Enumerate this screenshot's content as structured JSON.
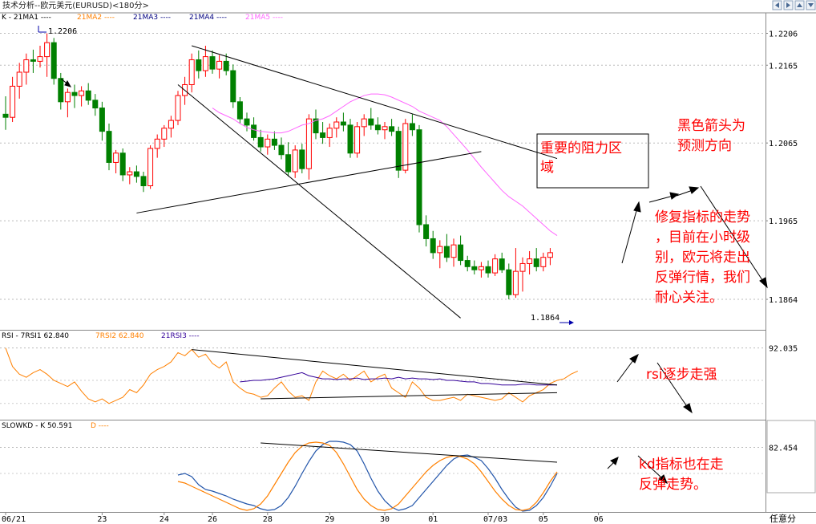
{
  "window": {
    "title": "技术分析--欧元美元(EURUSD)<180分>",
    "nav_buttons": [
      "prev-arrow-icon",
      "next-arrow-icon",
      "up-arrow-icon",
      "down-arrow-icon"
    ]
  },
  "colors": {
    "up": "#ff0000",
    "down": "#008000",
    "ma5": "#ff66ff",
    "rsi7": "#ff8000",
    "rsi21": "#330099",
    "kd_k": "#2255aa",
    "kd_d": "#ff8000",
    "annotation": "#ff0000"
  },
  "chart_data": [
    {
      "type": "candlestick",
      "panel": "price",
      "legend": [
        "K - 21MA1 ----",
        "21MA2 ----",
        "21MA3 ----",
        "21MA4 ----",
        "21MA5 ----"
      ],
      "ylim": [
        1.183,
        1.2222
      ],
      "y_ticks": [
        "1.2206",
        "1.2165",
        "1.2065",
        "1.1965",
        "1.1864"
      ],
      "y_tick_values": [
        1.2206,
        1.2165,
        1.2065,
        1.1965,
        1.1864
      ],
      "high_label": "1.2206",
      "low_label": "1.1864",
      "candles": [
        {
          "o": 1.2102,
          "h": 1.2125,
          "l": 1.2082,
          "c": 1.2098
        },
        {
          "o": 1.2098,
          "h": 1.215,
          "l": 1.2092,
          "c": 1.2138
        },
        {
          "o": 1.2138,
          "h": 1.2168,
          "l": 1.2122,
          "c": 1.2156
        },
        {
          "o": 1.2156,
          "h": 1.218,
          "l": 1.214,
          "c": 1.2172
        },
        {
          "o": 1.2172,
          "h": 1.2185,
          "l": 1.2155,
          "c": 1.217
        },
        {
          "o": 1.217,
          "h": 1.219,
          "l": 1.2162,
          "c": 1.2176
        },
        {
          "o": 1.2176,
          "h": 1.2206,
          "l": 1.215,
          "c": 1.2194
        },
        {
          "o": 1.2194,
          "h": 1.22,
          "l": 1.214,
          "c": 1.2148
        },
        {
          "o": 1.2148,
          "h": 1.2155,
          "l": 1.2108,
          "c": 1.2118
        },
        {
          "o": 1.2118,
          "h": 1.2135,
          "l": 1.2098,
          "c": 1.213
        },
        {
          "o": 1.213,
          "h": 1.214,
          "l": 1.211,
          "c": 1.2126
        },
        {
          "o": 1.2126,
          "h": 1.2138,
          "l": 1.2112,
          "c": 1.2132
        },
        {
          "o": 1.2132,
          "h": 1.2142,
          "l": 1.2114,
          "c": 1.212
        },
        {
          "o": 1.212,
          "h": 1.2128,
          "l": 1.21,
          "c": 1.211
        },
        {
          "o": 1.211,
          "h": 1.2118,
          "l": 1.2068,
          "c": 1.208
        },
        {
          "o": 1.208,
          "h": 1.209,
          "l": 1.203,
          "c": 1.204
        },
        {
          "o": 1.204,
          "h": 1.2056,
          "l": 1.2026,
          "c": 1.2052
        },
        {
          "o": 1.2052,
          "h": 1.2058,
          "l": 1.2016,
          "c": 1.2024
        },
        {
          "o": 1.2024,
          "h": 1.2034,
          "l": 1.2012,
          "c": 1.2028
        },
        {
          "o": 1.2028,
          "h": 1.2036,
          "l": 1.2014,
          "c": 1.2022
        },
        {
          "o": 1.2022,
          "h": 1.2028,
          "l": 1.2002,
          "c": 1.201
        },
        {
          "o": 1.201,
          "h": 1.2062,
          "l": 1.2006,
          "c": 1.2058
        },
        {
          "o": 1.2058,
          "h": 1.2076,
          "l": 1.2046,
          "c": 1.207
        },
        {
          "o": 1.207,
          "h": 1.2088,
          "l": 1.206,
          "c": 1.2084
        },
        {
          "o": 1.2084,
          "h": 1.21,
          "l": 1.2072,
          "c": 1.2094
        },
        {
          "o": 1.2094,
          "h": 1.2132,
          "l": 1.2088,
          "c": 1.2126
        },
        {
          "o": 1.2126,
          "h": 1.215,
          "l": 1.2114,
          "c": 1.214
        },
        {
          "o": 1.214,
          "h": 1.218,
          "l": 1.213,
          "c": 1.2172
        },
        {
          "o": 1.2172,
          "h": 1.2184,
          "l": 1.2148,
          "c": 1.2158
        },
        {
          "o": 1.2158,
          "h": 1.219,
          "l": 1.215,
          "c": 1.2176
        },
        {
          "o": 1.2176,
          "h": 1.2184,
          "l": 1.2154,
          "c": 1.216
        },
        {
          "o": 1.216,
          "h": 1.2178,
          "l": 1.2148,
          "c": 1.217
        },
        {
          "o": 1.217,
          "h": 1.218,
          "l": 1.2152,
          "c": 1.2158
        },
        {
          "o": 1.2158,
          "h": 1.2166,
          "l": 1.211,
          "c": 1.2118
        },
        {
          "o": 1.2118,
          "h": 1.2124,
          "l": 1.209,
          "c": 1.2096
        },
        {
          "o": 1.2096,
          "h": 1.2104,
          "l": 1.208,
          "c": 1.2088
        },
        {
          "o": 1.2088,
          "h": 1.2098,
          "l": 1.2068,
          "c": 1.2072
        },
        {
          "o": 1.2072,
          "h": 1.2082,
          "l": 1.2054,
          "c": 1.206
        },
        {
          "o": 1.206,
          "h": 1.2076,
          "l": 1.205,
          "c": 1.207
        },
        {
          "o": 1.207,
          "h": 1.208,
          "l": 1.2056,
          "c": 1.2062
        },
        {
          "o": 1.2062,
          "h": 1.2072,
          "l": 1.2044,
          "c": 1.205
        },
        {
          "o": 1.205,
          "h": 1.2066,
          "l": 1.2022,
          "c": 1.2028
        },
        {
          "o": 1.2028,
          "h": 1.2062,
          "l": 1.202,
          "c": 1.2056
        },
        {
          "o": 1.2056,
          "h": 1.2064,
          "l": 1.2026,
          "c": 1.2032
        },
        {
          "o": 1.2032,
          "h": 1.2102,
          "l": 1.2018,
          "c": 1.2096
        },
        {
          "o": 1.2096,
          "h": 1.2108,
          "l": 1.207,
          "c": 1.2078
        },
        {
          "o": 1.2078,
          "h": 1.2092,
          "l": 1.2064,
          "c": 1.2072
        },
        {
          "o": 1.2072,
          "h": 1.209,
          "l": 1.206,
          "c": 1.2084
        },
        {
          "o": 1.2084,
          "h": 1.2098,
          "l": 1.2072,
          "c": 1.2092
        },
        {
          "o": 1.2092,
          "h": 1.2104,
          "l": 1.208,
          "c": 1.2088
        },
        {
          "o": 1.2088,
          "h": 1.2096,
          "l": 1.2046,
          "c": 1.2052
        },
        {
          "o": 1.2052,
          "h": 1.2092,
          "l": 1.2046,
          "c": 1.2086
        },
        {
          "o": 1.2086,
          "h": 1.2102,
          "l": 1.2074,
          "c": 1.2096
        },
        {
          "o": 1.2096,
          "h": 1.211,
          "l": 1.2082,
          "c": 1.2088
        },
        {
          "o": 1.2088,
          "h": 1.2098,
          "l": 1.2076,
          "c": 1.2082
        },
        {
          "o": 1.2082,
          "h": 1.2092,
          "l": 1.207,
          "c": 1.2086
        },
        {
          "o": 1.2086,
          "h": 1.2096,
          "l": 1.2074,
          "c": 1.208
        },
        {
          "o": 1.208,
          "h": 1.2086,
          "l": 1.202,
          "c": 1.203
        },
        {
          "o": 1.203,
          "h": 1.2096,
          "l": 1.2026,
          "c": 1.209
        },
        {
          "o": 1.209,
          "h": 1.2102,
          "l": 1.2074,
          "c": 1.2082
        },
        {
          "o": 1.2082,
          "h": 1.2088,
          "l": 1.195,
          "c": 1.196
        },
        {
          "o": 1.196,
          "h": 1.1972,
          "l": 1.1932,
          "c": 1.1942
        },
        {
          "o": 1.1942,
          "h": 1.1952,
          "l": 1.1916,
          "c": 1.1924
        },
        {
          "o": 1.1924,
          "h": 1.194,
          "l": 1.1904,
          "c": 1.1932
        },
        {
          "o": 1.1932,
          "h": 1.1948,
          "l": 1.1912,
          "c": 1.1918
        },
        {
          "o": 1.1918,
          "h": 1.1942,
          "l": 1.1906,
          "c": 1.1934
        },
        {
          "o": 1.1934,
          "h": 1.1946,
          "l": 1.1908,
          "c": 1.1914
        },
        {
          "o": 1.1914,
          "h": 1.192,
          "l": 1.19,
          "c": 1.1906
        },
        {
          "o": 1.1906,
          "h": 1.1914,
          "l": 1.1896,
          "c": 1.1902
        },
        {
          "o": 1.1902,
          "h": 1.1912,
          "l": 1.1892,
          "c": 1.1906
        },
        {
          "o": 1.1906,
          "h": 1.1914,
          "l": 1.1892,
          "c": 1.1898
        },
        {
          "o": 1.1898,
          "h": 1.1922,
          "l": 1.1894,
          "c": 1.1916
        },
        {
          "o": 1.1916,
          "h": 1.1924,
          "l": 1.1898,
          "c": 1.1902
        },
        {
          "o": 1.1902,
          "h": 1.191,
          "l": 1.1864,
          "c": 1.187
        },
        {
          "o": 1.187,
          "h": 1.193,
          "l": 1.1866,
          "c": 1.19
        },
        {
          "o": 1.19,
          "h": 1.1918,
          "l": 1.1874,
          "c": 1.191
        },
        {
          "o": 1.191,
          "h": 1.1926,
          "l": 1.1896,
          "c": 1.1916
        },
        {
          "o": 1.1916,
          "h": 1.193,
          "l": 1.19,
          "c": 1.1906
        },
        {
          "o": 1.1906,
          "h": 1.1924,
          "l": 1.19,
          "c": 1.1918
        },
        {
          "o": 1.1918,
          "h": 1.193,
          "l": 1.1908,
          "c": 1.1924
        }
      ],
      "ma5": [
        1.211,
        1.2104,
        1.21,
        1.2096,
        1.209,
        1.2085,
        1.2082,
        1.208,
        1.2079,
        1.2078,
        1.2078,
        1.208,
        1.2084,
        1.2088,
        1.209,
        1.2094,
        1.2096,
        1.21,
        1.2106,
        1.2112,
        1.2118,
        1.2122,
        1.2126,
        1.2128,
        1.2128,
        1.2127,
        1.2124,
        1.212,
        1.2116,
        1.2112,
        1.2106,
        1.2102,
        1.2098,
        1.2094,
        1.2086,
        1.2076,
        1.2066,
        1.2056,
        1.2045,
        1.2034,
        1.2024,
        1.2014,
        1.2004,
        1.1996,
        1.199,
        1.1984,
        1.1976,
        1.1968,
        1.196,
        1.1952,
        1.1946
      ],
      "ma5_start_index": 30,
      "trendlines": [
        {
          "name": "resistance-trendline-upper",
          "from": [
            27,
            1.219
          ],
          "to": [
            80,
            1.2045
          ]
        },
        {
          "name": "channel-trendline-lower",
          "from": [
            25,
            1.214
          ],
          "to": [
            66,
            1.184
          ]
        },
        {
          "name": "support-trendline",
          "from": [
            19,
            1.1975
          ],
          "to": [
            69,
            1.2054
          ]
        }
      ],
      "annotations": {
        "box_text": "重要的阻力区域",
        "direction_text": "黑色箭头为预测方向",
        "forecast_text": "修复指标的走势，目前在小时级别，欧元将走出反弹行情，我们耐心关注。"
      }
    },
    {
      "type": "line",
      "panel": "rsi",
      "legend": [
        "RSI - 7RSI1 62.840",
        "7RSI2 62.840",
        "21RSI3 ----"
      ],
      "ylim": [
        0,
        100
      ],
      "y_ticks": [
        "92.035"
      ],
      "y_tick_values": [
        92.035
      ],
      "series": [
        {
          "name": "7RSI2",
          "values": [
            92,
            68,
            58,
            54,
            60,
            64,
            58,
            50,
            46,
            42,
            48,
            36,
            26,
            22,
            26,
            20,
            24,
            28,
            38,
            34,
            44,
            58,
            64,
            68,
            74,
            86,
            82,
            90,
            80,
            84,
            72,
            66,
            74,
            48,
            40,
            34,
            32,
            28,
            30,
            40,
            48,
            36,
            28,
            30,
            24,
            48,
            62,
            56,
            52,
            58,
            50,
            56,
            62,
            48,
            54,
            58,
            40,
            34,
            28,
            48,
            40,
            28,
            24,
            24,
            26,
            28,
            24,
            32,
            30,
            28,
            26,
            24,
            26,
            34,
            28,
            22,
            30,
            34,
            38,
            46,
            50,
            52,
            58,
            62
          ]
        },
        {
          "name": "21RSI3",
          "values": [
            48,
            49,
            50,
            50,
            51,
            52,
            54,
            56,
            58,
            60,
            56,
            54,
            52,
            52,
            51,
            52,
            52,
            53,
            51,
            52,
            52,
            53,
            52,
            54,
            52,
            53,
            52,
            52,
            51,
            52,
            50,
            50,
            49,
            48,
            48,
            46,
            46,
            45,
            44,
            44,
            44,
            45,
            45,
            44,
            44,
            44,
            44
          ]
        }
      ],
      "rsi3_start_index": 34,
      "trendlines": [
        {
          "name": "rsi-trendline-upper",
          "from": [
            27,
            90
          ],
          "to": [
            80,
            44
          ]
        },
        {
          "name": "rsi-trendline-lower",
          "from": [
            37,
            26
          ],
          "to": [
            80,
            34
          ]
        }
      ],
      "annotations": {
        "rsi_text": "rsi逐步走强"
      }
    },
    {
      "type": "line",
      "panel": "slowkd",
      "legend": [
        "SLOWKD - K 50.591",
        "D ----"
      ],
      "ylim": [
        0,
        100
      ],
      "y_ticks": [
        "82.454"
      ],
      "y_tick_values": [
        82.454
      ],
      "series": [
        {
          "name": "K",
          "values": [
            48,
            50,
            46,
            36,
            30,
            28,
            25,
            22,
            18,
            15,
            12,
            10,
            6,
            4,
            5,
            10,
            20,
            34,
            50,
            65,
            78,
            86,
            90,
            90,
            89,
            86,
            78,
            62,
            44,
            28,
            16,
            8,
            4,
            6,
            10,
            20,
            30,
            40,
            50,
            60,
            68,
            72,
            73,
            70,
            66,
            56,
            44,
            30,
            18,
            8,
            3,
            4,
            10,
            20,
            34,
            50
          ]
        },
        {
          "name": "D",
          "values": [
            40,
            38,
            34,
            30,
            26,
            22,
            18,
            14,
            10,
            6,
            4,
            6,
            12,
            22,
            36,
            50,
            64,
            76,
            84,
            88,
            89,
            88,
            85,
            76,
            62,
            46,
            30,
            18,
            10,
            5,
            4,
            6,
            12,
            22,
            32,
            42,
            52,
            60,
            66,
            70,
            72,
            71,
            68,
            62,
            52,
            40,
            28,
            18,
            10,
            5,
            4,
            6,
            14,
            26,
            40,
            52
          ]
        }
      ],
      "k_start_index": 25,
      "trendlines": [
        {
          "name": "kd-trendline",
          "from": [
            37,
            88
          ],
          "to": [
            80,
            64
          ]
        }
      ],
      "annotations": {
        "kd_text": "kd指标也在走反弹走势。"
      }
    }
  ],
  "x_axis": {
    "labels": [
      "06/21",
      "23",
      "24",
      "26",
      "28",
      "29",
      "30",
      "01",
      "07/03",
      "05",
      "06"
    ],
    "label_indexes": [
      0,
      14,
      23,
      30,
      38,
      47,
      55,
      62,
      70,
      78,
      86
    ]
  },
  "footer": {
    "label": "任意分"
  }
}
